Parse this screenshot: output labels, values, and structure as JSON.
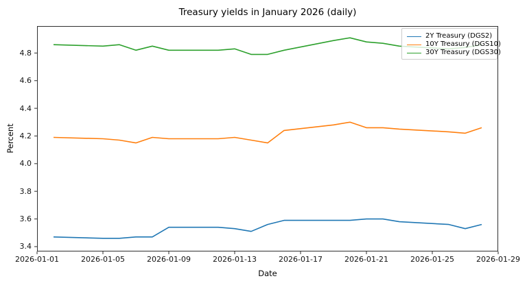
{
  "chart_data": {
    "type": "line",
    "title": "Treasury yields in January 2026 (daily)",
    "xlabel": "Date",
    "ylabel": "Percent",
    "x": [
      "2026-01-02",
      "2026-01-05",
      "2026-01-06",
      "2026-01-07",
      "2026-01-08",
      "2026-01-09",
      "2026-01-12",
      "2026-01-13",
      "2026-01-14",
      "2026-01-15",
      "2026-01-16",
      "2026-01-19",
      "2026-01-20",
      "2026-01-21",
      "2026-01-22",
      "2026-01-23",
      "2026-01-26",
      "2026-01-27",
      "2026-01-28"
    ],
    "series": [
      {
        "name": "2Y Treasury (DGS2)",
        "color": "#1f77b4",
        "values": [
          3.47,
          3.46,
          3.46,
          3.47,
          3.47,
          3.54,
          3.54,
          3.53,
          3.51,
          3.56,
          3.59,
          3.59,
          3.59,
          3.6,
          3.6,
          3.58,
          3.56,
          3.53,
          3.56
        ]
      },
      {
        "name": "10Y Treasury (DGS10)",
        "color": "#ff7f0e",
        "values": [
          4.19,
          4.18,
          4.17,
          4.15,
          4.19,
          4.18,
          4.18,
          4.19,
          4.17,
          4.15,
          4.24,
          4.28,
          4.3,
          4.26,
          4.26,
          4.25,
          4.23,
          4.22,
          4.26
        ]
      },
      {
        "name": "30Y Treasury (DGS30)",
        "color": "#2ca02c",
        "values": [
          4.86,
          4.85,
          4.86,
          4.82,
          4.85,
          4.82,
          4.82,
          4.83,
          4.79,
          4.79,
          4.82,
          4.89,
          4.91,
          4.88,
          4.87,
          4.85,
          4.83,
          4.84,
          4.86
        ]
      }
    ],
    "x_ticks": [
      "2026-01-01",
      "2026-01-05",
      "2026-01-09",
      "2026-01-13",
      "2026-01-17",
      "2026-01-21",
      "2026-01-25",
      "2026-01-29"
    ],
    "y_ticks": [
      3.4,
      3.6,
      3.8,
      4.0,
      4.2,
      4.4,
      4.6,
      4.8
    ],
    "xlim": [
      "2026-01-01",
      "2026-01-29"
    ],
    "ylim": [
      3.365,
      4.995
    ],
    "grid": false,
    "legend_position": "upper right",
    "frame_color": "#2e2e2e",
    "tick_color": "#2e2e2e"
  }
}
